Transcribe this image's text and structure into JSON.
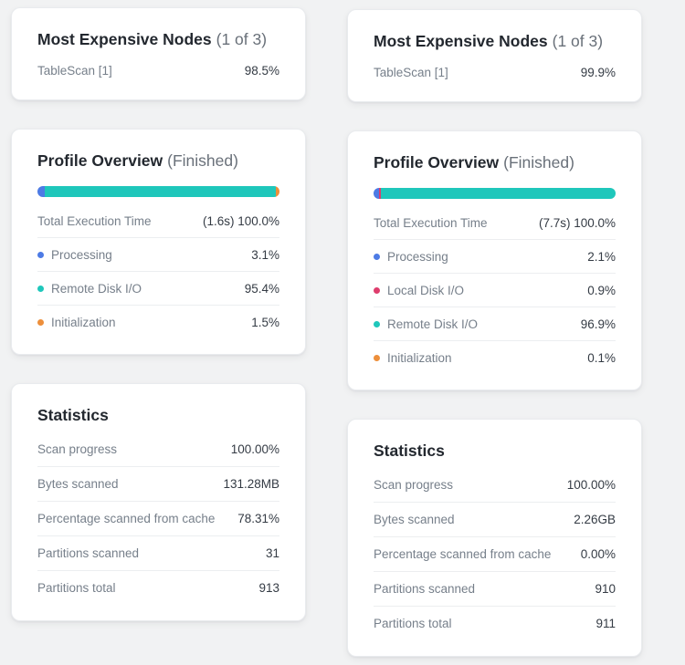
{
  "panels": [
    {
      "most_expensive": {
        "title": "Most Expensive Nodes",
        "subtitle": "(1 of 3)",
        "node": {
          "label": "TableScan [1]",
          "value": "98.5%"
        }
      },
      "profile": {
        "title": "Profile Overview",
        "subtitle": "(Finished)",
        "total": {
          "label": "Total Execution Time",
          "value": "(1.6s) 100.0%"
        },
        "segments": [
          {
            "label": "Processing",
            "value": "3.1%",
            "pct": 3.1,
            "color": "#4d7be5"
          },
          {
            "label": "Remote Disk I/O",
            "value": "95.4%",
            "pct": 95.4,
            "color": "#1fc7bb"
          },
          {
            "label": "Initialization",
            "value": "1.5%",
            "pct": 1.5,
            "color": "#ed8f3b"
          }
        ]
      },
      "statistics": {
        "title": "Statistics",
        "rows": [
          {
            "label": "Scan progress",
            "value": "100.00%"
          },
          {
            "label": "Bytes scanned",
            "value": "131.28MB"
          },
          {
            "label": "Percentage scanned from cache",
            "value": "78.31%"
          },
          {
            "label": "Partitions scanned",
            "value": "31"
          },
          {
            "label": "Partitions total",
            "value": "913"
          }
        ]
      }
    },
    {
      "most_expensive": {
        "title": "Most Expensive Nodes",
        "subtitle": "(1 of 3)",
        "node": {
          "label": "TableScan [1]",
          "value": "99.9%"
        }
      },
      "profile": {
        "title": "Profile Overview",
        "subtitle": "(Finished)",
        "total": {
          "label": "Total Execution Time",
          "value": "(7.7s) 100.0%"
        },
        "segments": [
          {
            "label": "Processing",
            "value": "2.1%",
            "pct": 2.1,
            "color": "#4d7be5"
          },
          {
            "label": "Local Disk I/O",
            "value": "0.9%",
            "pct": 0.9,
            "color": "#de3d6d"
          },
          {
            "label": "Remote Disk I/O",
            "value": "96.9%",
            "pct": 96.9,
            "color": "#1fc7bb"
          },
          {
            "label": "Initialization",
            "value": "0.1%",
            "pct": 0.1,
            "color": "#ed8f3b"
          }
        ]
      },
      "statistics": {
        "title": "Statistics",
        "rows": [
          {
            "label": "Scan progress",
            "value": "100.00%"
          },
          {
            "label": "Bytes scanned",
            "value": "2.26GB"
          },
          {
            "label": "Percentage scanned from cache",
            "value": "0.00%"
          },
          {
            "label": "Partitions scanned",
            "value": "910"
          },
          {
            "label": "Partitions total",
            "value": "911"
          }
        ]
      }
    }
  ]
}
